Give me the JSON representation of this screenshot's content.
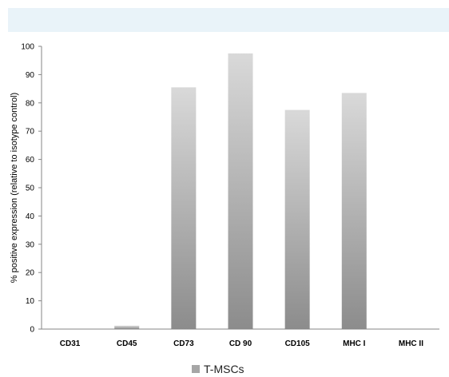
{
  "banner": {
    "color": "#e9f3f9"
  },
  "chart_data": {
    "type": "bar",
    "title": "",
    "xlabel": "",
    "ylabel": "% positive expression (relative to isotype control)",
    "ylim": [
      0,
      100
    ],
    "yticks": [
      0,
      10,
      20,
      30,
      40,
      50,
      60,
      70,
      80,
      90,
      100
    ],
    "categories": [
      "CD31",
      "CD45",
      "CD73",
      "CD 90",
      "CD105",
      "MHC I",
      "MHC II"
    ],
    "series": [
      {
        "name": "T-MSCs",
        "values": [
          0,
          1.2,
          85.5,
          97.5,
          77.5,
          83.5,
          0
        ]
      }
    ],
    "legend": "bottom-center",
    "grid": false,
    "colors": {
      "bar_top": "#d9d9d9",
      "bar_bottom": "#8c8c8c",
      "legend_swatch": "#a6a6a6"
    }
  }
}
